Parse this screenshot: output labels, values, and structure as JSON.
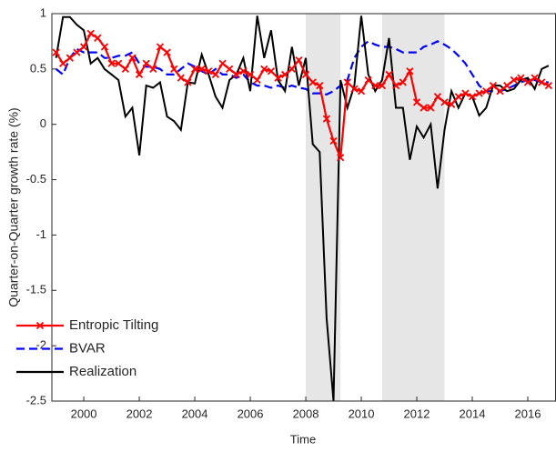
{
  "chart_data": {
    "type": "line",
    "xlabel": "Time",
    "ylabel": "Quarter-on-Quarter growth rate (%)",
    "x": [
      1999,
      1999.25,
      1999.5,
      1999.75,
      2000,
      2000.25,
      2000.5,
      2000.75,
      2001,
      2001.25,
      2001.5,
      2001.75,
      2002,
      2002.25,
      2002.5,
      2002.75,
      2003,
      2003.25,
      2003.5,
      2003.75,
      2004,
      2004.25,
      2004.5,
      2004.75,
      2005,
      2005.25,
      2005.5,
      2005.75,
      2006,
      2006.25,
      2006.5,
      2006.75,
      2007,
      2007.25,
      2007.5,
      2007.75,
      2008,
      2008.25,
      2008.5,
      2008.75,
      2009,
      2009.25,
      2009.5,
      2009.75,
      2010,
      2010.25,
      2010.5,
      2010.75,
      2011,
      2011.25,
      2011.5,
      2011.75,
      2012,
      2012.25,
      2012.5,
      2012.75,
      2013,
      2013.25,
      2013.5,
      2013.75,
      2014,
      2014.25,
      2014.5,
      2014.75,
      2015,
      2015.25,
      2015.5,
      2015.75,
      2016,
      2016.25,
      2016.5,
      2016.75
    ],
    "series": [
      {
        "name": "Entropic Tilting",
        "color": "#ff0000",
        "style": "solid",
        "marker": "x",
        "values": [
          0.65,
          0.55,
          0.6,
          0.65,
          0.7,
          0.82,
          0.78,
          0.7,
          0.55,
          0.55,
          0.5,
          0.6,
          0.45,
          0.55,
          0.5,
          0.7,
          0.65,
          0.5,
          0.42,
          0.38,
          0.5,
          0.5,
          0.48,
          0.45,
          0.55,
          0.5,
          0.45,
          0.48,
          0.45,
          0.4,
          0.5,
          0.48,
          0.42,
          0.45,
          0.5,
          0.58,
          0.45,
          0.38,
          0.35,
          0.05,
          -0.15,
          -0.3,
          0.38,
          0.32,
          0.3,
          0.4,
          0.35,
          0.35,
          0.45,
          0.35,
          0.38,
          0.48,
          0.2,
          0.15,
          0.15,
          0.25,
          0.2,
          0.18,
          0.25,
          0.28,
          0.25,
          0.28,
          0.3,
          0.35,
          0.3,
          0.35,
          0.4,
          0.42,
          0.38,
          0.42,
          0.38,
          0.35
        ]
      },
      {
        "name": "BVAR",
        "color": "#0000ff",
        "style": "dashed",
        "values": [
          0.5,
          0.45,
          0.6,
          0.68,
          0.65,
          0.65,
          0.65,
          0.6,
          0.6,
          0.62,
          0.62,
          0.65,
          0.55,
          0.52,
          0.52,
          0.5,
          0.45,
          0.45,
          0.5,
          0.55,
          0.52,
          0.48,
          0.45,
          0.5,
          0.45,
          0.45,
          0.42,
          0.45,
          0.38,
          0.35,
          0.35,
          0.33,
          0.35,
          0.33,
          0.35,
          0.33,
          0.32,
          0.28,
          0.28,
          0.27,
          0.3,
          0.35,
          0.4,
          0.6,
          0.7,
          0.75,
          0.72,
          0.7,
          0.7,
          0.68,
          0.65,
          0.65,
          0.65,
          0.7,
          0.72,
          0.75,
          0.72,
          0.68,
          0.62,
          0.55,
          0.45,
          0.35,
          0.3,
          0.3,
          0.3,
          0.32,
          0.35,
          0.38,
          0.4,
          0.4,
          0.38,
          0.38
        ]
      },
      {
        "name": "Realization",
        "color": "#000000",
        "style": "solid",
        "values": [
          0.6,
          0.97,
          0.97,
          0.9,
          0.85,
          0.55,
          0.6,
          0.5,
          0.45,
          0.4,
          0.07,
          0.15,
          -0.28,
          0.35,
          0.33,
          0.38,
          0.07,
          0.03,
          -0.05,
          0.38,
          0.37,
          0.63,
          0.45,
          0.25,
          0.15,
          0.4,
          0.45,
          0.6,
          0.3,
          0.98,
          0.6,
          0.85,
          0.4,
          0.3,
          0.7,
          0.35,
          0.6,
          -0.18,
          -0.25,
          -1.75,
          -2.5,
          0.4,
          0.15,
          0.35,
          0.98,
          0.45,
          0.3,
          0.4,
          0.78,
          0.15,
          0.15,
          -0.32,
          -0.02,
          -0.12,
          0.0,
          -0.58,
          -0.05,
          0.3,
          0.15,
          0.28,
          0.25,
          0.08,
          0.15,
          0.35,
          0.35,
          0.3,
          0.32,
          0.4,
          0.42,
          0.32,
          0.5,
          0.53
        ]
      }
    ],
    "shaded_regions": [
      [
        2008,
        2009.25
      ],
      [
        2010.75,
        2013
      ]
    ],
    "shade_color": "#e6e6e6",
    "xlim": [
      1998.85,
      2017
    ],
    "xticks": [
      2000,
      2002,
      2004,
      2006,
      2008,
      2010,
      2012,
      2014,
      2016
    ],
    "ylim": [
      -2.5,
      1
    ],
    "yticks": [
      -2.5,
      -2,
      -1.5,
      -1,
      -0.5,
      0,
      0.5,
      1
    ],
    "legend": "lower left"
  }
}
